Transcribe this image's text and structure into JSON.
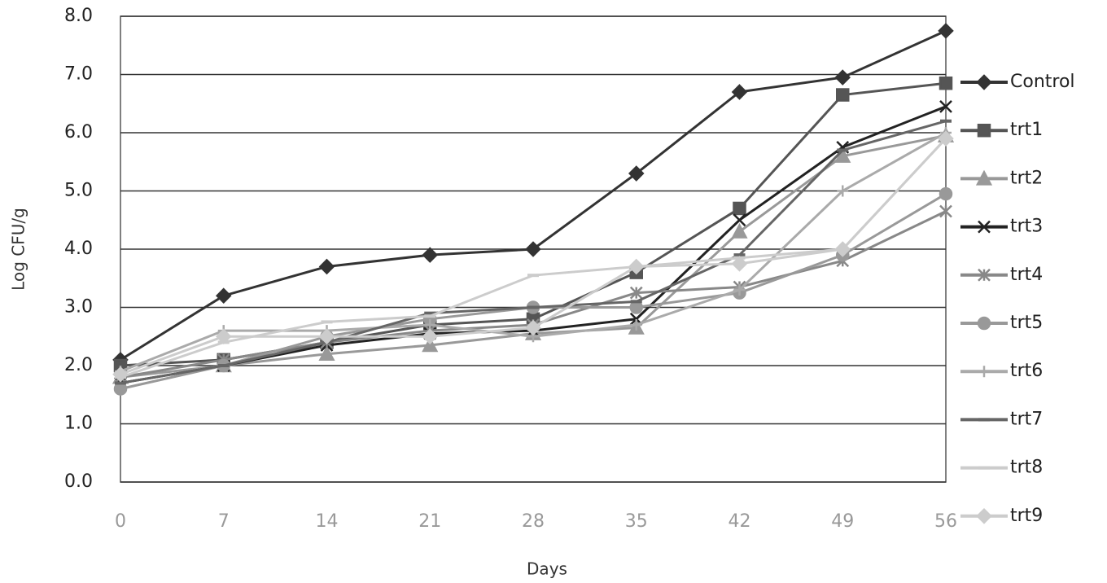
{
  "chart_data": {
    "type": "line",
    "x_label": "Days",
    "y_label": "Log CFU/g",
    "x": [
      0,
      7,
      14,
      21,
      28,
      35,
      42,
      49,
      56
    ],
    "xlim": [
      0,
      56
    ],
    "xticks": [
      0,
      7,
      14,
      21,
      28,
      35,
      42,
      49,
      56
    ],
    "ylim": [
      0,
      8
    ],
    "yticks": [
      {
        "value": 0,
        "label": "0.0"
      },
      {
        "value": 1,
        "label": "1.0"
      },
      {
        "value": 2,
        "label": "2.0"
      },
      {
        "value": 3,
        "label": "3.0"
      },
      {
        "value": 4,
        "label": "4.0"
      },
      {
        "value": 5,
        "label": "5.0"
      },
      {
        "value": 6,
        "label": "6.0"
      },
      {
        "value": 7,
        "label": "7.0"
      },
      {
        "value": 8,
        "label": "8.0"
      }
    ],
    "grid": true,
    "legend": "right",
    "series": [
      {
        "name": "Control",
        "color": "#333333",
        "marker": "diamond",
        "values": [
          2.1,
          3.2,
          3.7,
          3.9,
          4.0,
          5.3,
          6.7,
          6.95,
          7.75
        ]
      },
      {
        "name": "trt1",
        "color": "#555555",
        "marker": "square",
        "values": [
          2.0,
          2.1,
          2.4,
          2.7,
          2.8,
          3.6,
          4.7,
          6.65,
          6.85
        ]
      },
      {
        "name": "trt2",
        "color": "#999999",
        "marker": "triangle",
        "values": [
          1.8,
          2.0,
          2.2,
          2.35,
          2.55,
          2.65,
          4.3,
          5.6,
          5.95
        ]
      },
      {
        "name": "trt3",
        "color": "#222222",
        "marker": "x",
        "values": [
          1.7,
          2.0,
          2.35,
          2.55,
          2.6,
          2.8,
          4.5,
          5.75,
          6.45
        ]
      },
      {
        "name": "trt4",
        "color": "#888888",
        "marker": "star",
        "values": [
          1.8,
          2.1,
          2.4,
          2.6,
          2.7,
          3.25,
          3.35,
          3.8,
          4.65
        ]
      },
      {
        "name": "trt5",
        "color": "#999999",
        "marker": "circle",
        "values": [
          1.6,
          2.0,
          2.5,
          2.8,
          3.0,
          3.0,
          3.25,
          3.9,
          4.95
        ]
      },
      {
        "name": "trt6",
        "color": "#aaaaaa",
        "marker": "plus",
        "values": [
          1.9,
          2.6,
          2.6,
          2.7,
          2.5,
          2.7,
          3.3,
          5.0,
          6.0
        ]
      },
      {
        "name": "trt7",
        "color": "#666666",
        "marker": "dash",
        "values": [
          1.7,
          2.0,
          2.4,
          2.9,
          3.0,
          3.1,
          3.9,
          5.7,
          6.2
        ]
      },
      {
        "name": "trt8",
        "color": "#cccccc",
        "marker": "dash",
        "values": [
          1.8,
          2.4,
          2.75,
          2.85,
          3.55,
          3.7,
          3.85,
          4.0,
          5.9
        ]
      },
      {
        "name": "trt9",
        "color": "#cccccc",
        "marker": "diamond",
        "values": [
          1.85,
          2.5,
          2.5,
          2.5,
          2.65,
          3.7,
          3.75,
          4.0,
          5.9
        ]
      }
    ]
  }
}
